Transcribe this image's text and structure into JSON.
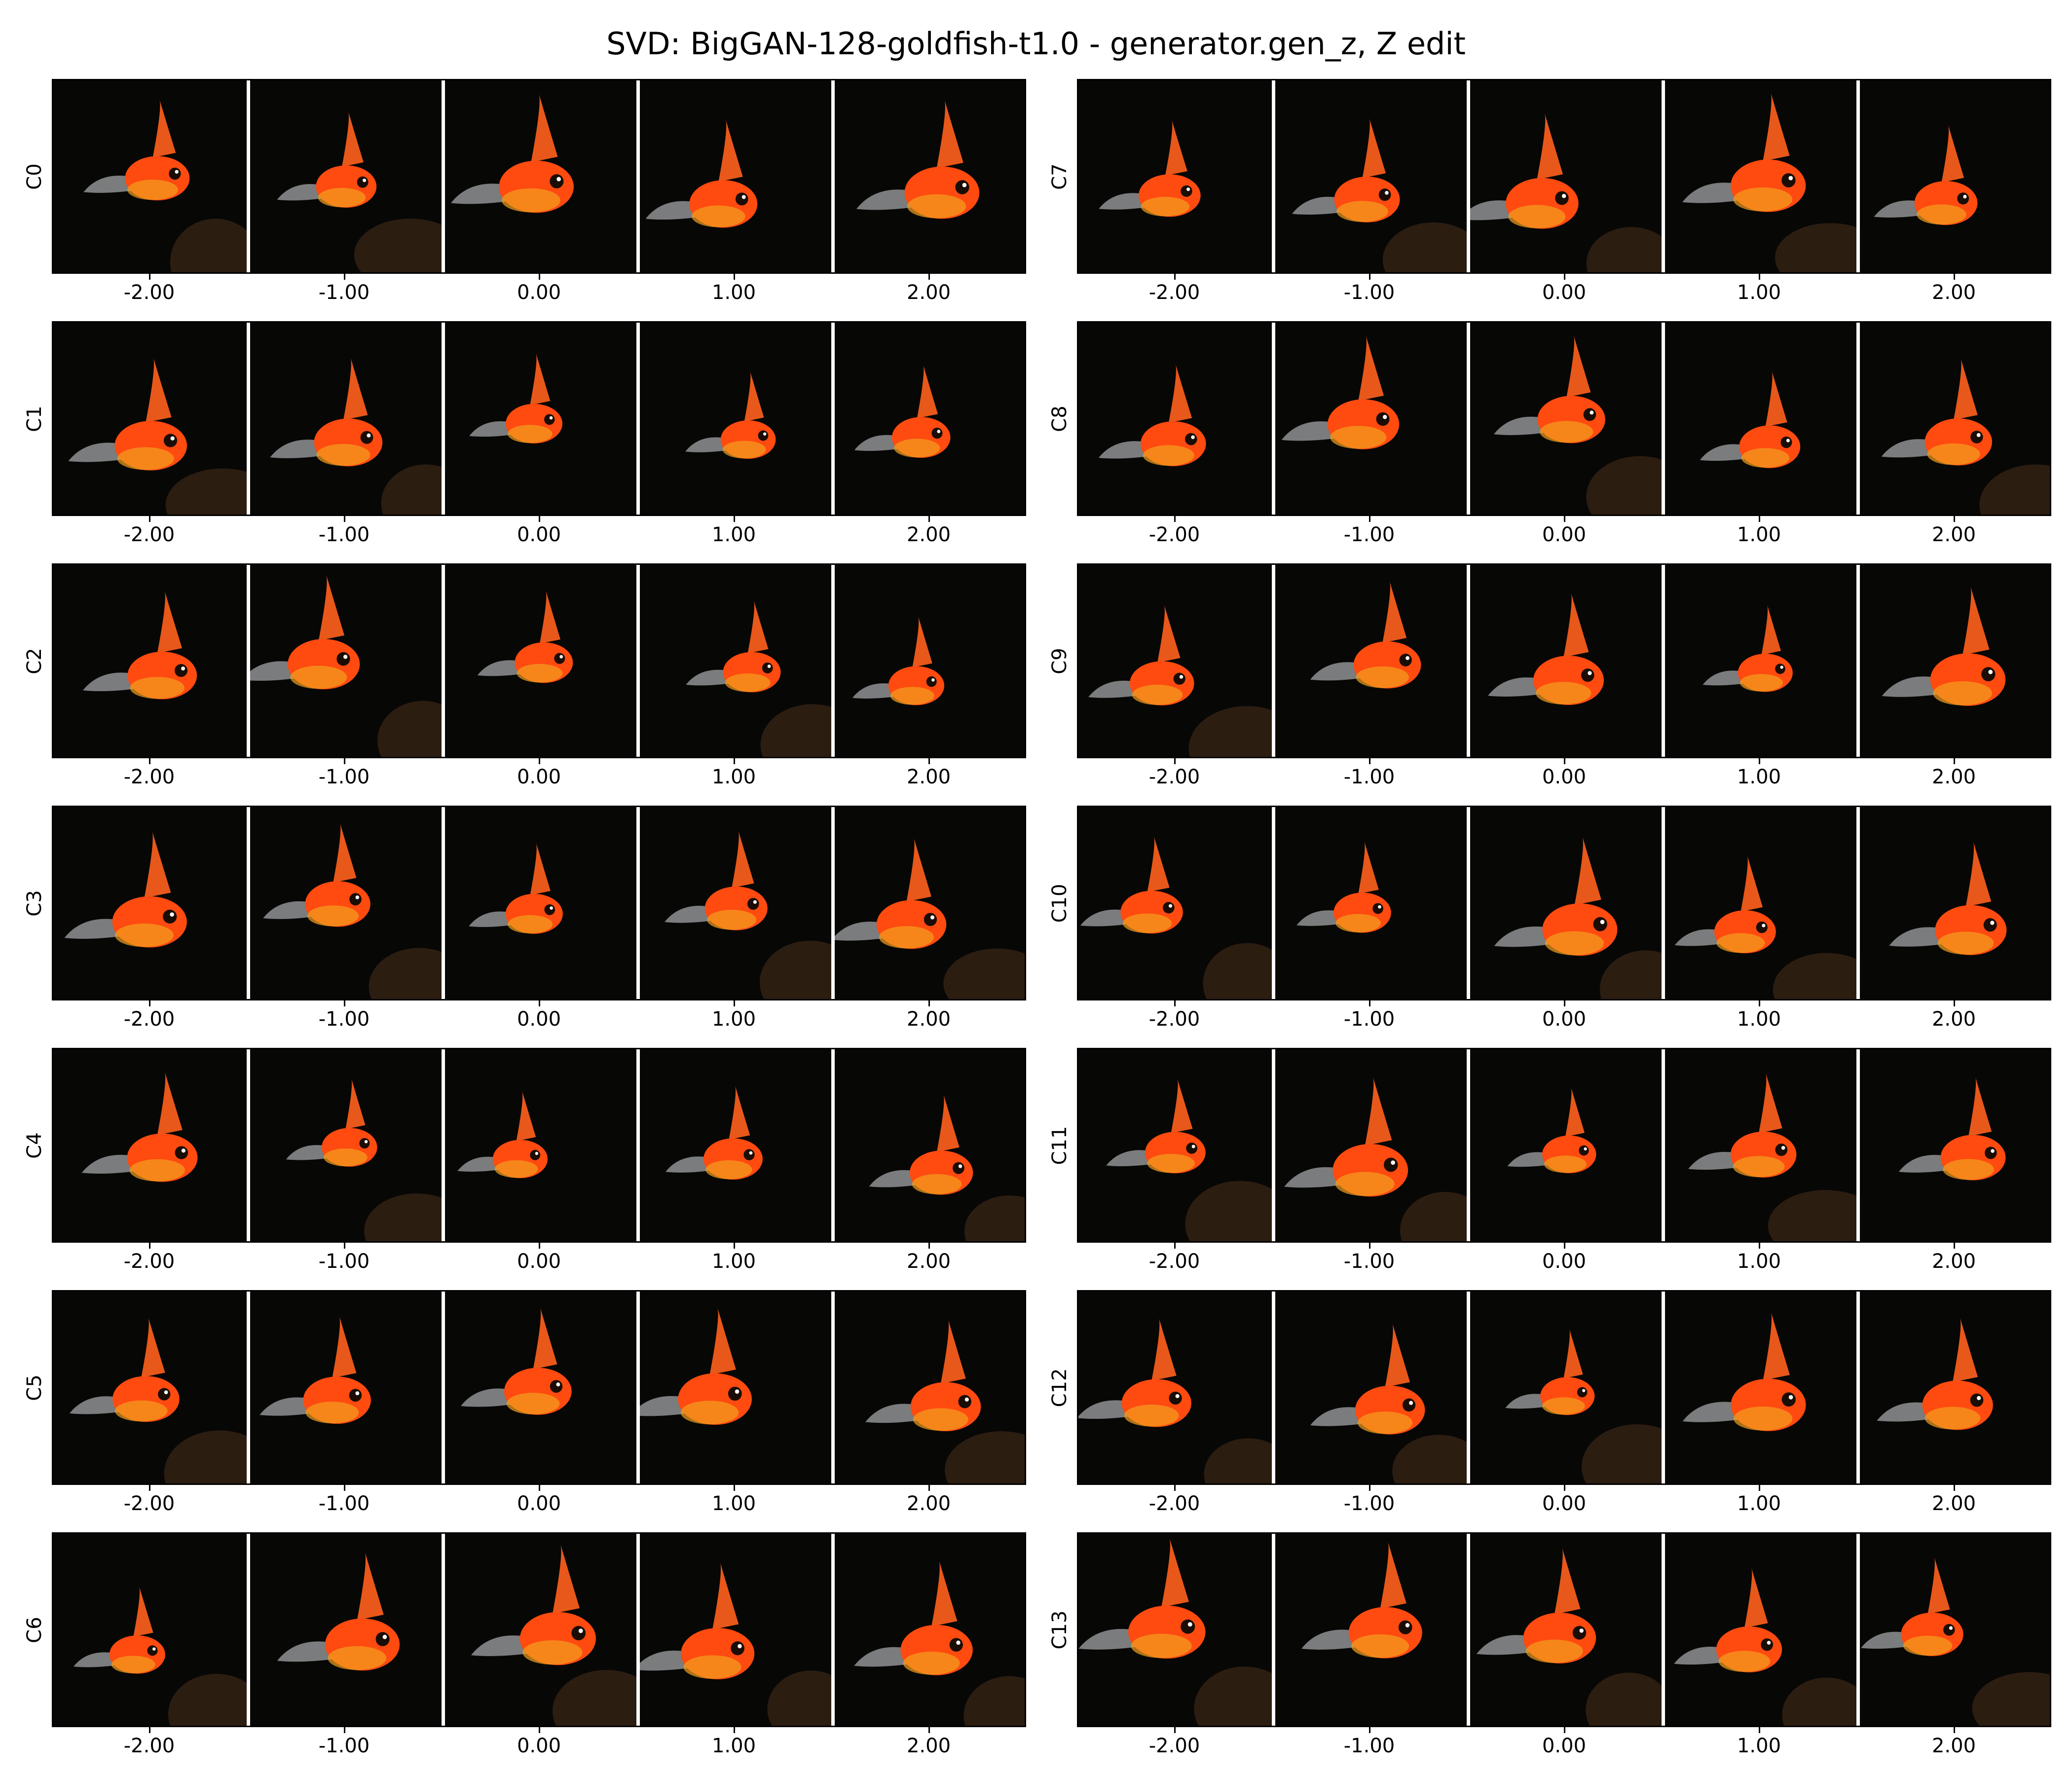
{
  "title": "SVD: BigGAN-128-goldfish-t1.0 - generator.gen_z, Z edit",
  "tick_labels": [
    "-2.00",
    "-1.00",
    "0.00",
    "1.00",
    "2.00"
  ],
  "components": [
    "C0",
    "C1",
    "C2",
    "C3",
    "C4",
    "C5",
    "C6",
    "C7",
    "C8",
    "C9",
    "C10",
    "C11",
    "C12",
    "C13"
  ],
  "image_content": {
    "subject": "goldfish",
    "background_color": "#070706",
    "fish_color": "#ff4a10",
    "tail_color": "#d8dde0"
  }
}
